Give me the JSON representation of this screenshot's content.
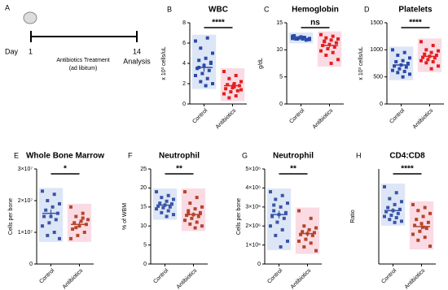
{
  "timeline": {
    "label": "A",
    "day_word": "Day",
    "start": "1",
    "treatment": "Antibiotics Treatment",
    "treatment_note": "(ad libitum)",
    "end": "14",
    "end_label": "Analysis"
  },
  "chart_data": [
    {
      "type": "dot",
      "panel": "B",
      "title": "WBC",
      "ylabel": "x 10³ cells/uL",
      "ylim": [
        0,
        8
      ],
      "yticks": [
        0,
        2,
        4,
        6,
        8
      ],
      "significance": "****",
      "series": [
        {
          "name": "Control",
          "color": "#2b4aa8",
          "shade": "#dde6f6",
          "values": [
            6.2,
            6.5,
            5.5,
            5.0,
            4.5,
            4.3,
            4.0,
            3.8,
            3.5,
            3.3,
            3.0,
            2.8,
            2.5,
            2.2,
            2.0,
            1.8,
            3.6,
            4.1
          ],
          "mean": 3.6,
          "sem": 0.4
        },
        {
          "name": "Antibiotics",
          "color": "#e02020",
          "shade": "#fadbe4",
          "values": [
            3.2,
            2.8,
            2.5,
            2.2,
            2.0,
            1.9,
            1.8,
            1.6,
            1.5,
            1.3,
            1.2,
            1.0,
            0.8,
            0.6,
            1.4,
            1.7
          ],
          "mean": 1.8,
          "sem": 0.2
        }
      ]
    },
    {
      "type": "dot",
      "panel": "C",
      "title": "Hemoglobin",
      "ylabel": "g/dL",
      "ylim": [
        0,
        15
      ],
      "yticks": [
        0,
        5,
        10,
        15
      ],
      "significance": "ns",
      "series": [
        {
          "name": "Control",
          "color": "#2b4aa8",
          "shade": "#dde6f6",
          "values": [
            12.5,
            12.3,
            12.2,
            12.1,
            12.0,
            12.0,
            11.9,
            12.4,
            12.6,
            11.8,
            12.2,
            12.1,
            12.3,
            12.0,
            11.9,
            12.2
          ],
          "mean": 12.1,
          "sem": 0.1
        },
        {
          "name": "Antibiotics",
          "color": "#e02020",
          "shade": "#fadbe4",
          "values": [
            12.8,
            12.5,
            12.2,
            12.0,
            11.8,
            11.5,
            11.3,
            11.0,
            10.8,
            10.5,
            10.2,
            9.8,
            9.5,
            9.0,
            8.2,
            7.5,
            11.6
          ],
          "mean": 10.8,
          "sem": 0.4
        }
      ]
    },
    {
      "type": "dot",
      "panel": "D",
      "title": "Platelets",
      "ylabel": "x 10³ cells/uL",
      "ylim": [
        0,
        1500
      ],
      "yticks": [
        0,
        500,
        1000,
        1500
      ],
      "significance": "****",
      "series": [
        {
          "name": "Control",
          "color": "#2b4aa8",
          "shade": "#dde6f6",
          "values": [
            1000,
            950,
            900,
            850,
            800,
            780,
            750,
            720,
            700,
            680,
            650,
            620,
            600,
            580,
            550,
            500
          ],
          "mean": 720,
          "sem": 30
        },
        {
          "name": "Antibiotics",
          "color": "#e02020",
          "shade": "#fadbe4",
          "values": [
            1150,
            1080,
            1000,
            980,
            950,
            920,
            900,
            880,
            860,
            850,
            820,
            800,
            780,
            760,
            700,
            650
          ],
          "mean": 880,
          "sem": 30
        }
      ]
    },
    {
      "type": "dot",
      "panel": "E",
      "title": "Whole Bone Marrow",
      "ylabel": "Cells per bone",
      "ylim": [
        0,
        30000000
      ],
      "yticks": [
        0,
        {
          "value": 10000000,
          "label": "1×10⁷"
        },
        {
          "value": 20000000,
          "label": "2×10⁷"
        },
        {
          "value": 30000000,
          "label": "3×10⁷"
        }
      ],
      "significance": "*",
      "series": [
        {
          "name": "Control",
          "color": "#3a55a5",
          "shade": "#dde6f6",
          "values": [
            23000000,
            22000000,
            20000000,
            19000000,
            18000000,
            17000000,
            16000000,
            15000000,
            15000000,
            14000000,
            13000000,
            12000000,
            10000000,
            9000000,
            8000000
          ],
          "mean": 16000000,
          "sem": 1200000
        },
        {
          "name": "Antibiotics",
          "color": "#b5452a",
          "shade": "#fadbe4",
          "values": [
            18000000,
            16000000,
            15000000,
            14000000,
            13500000,
            13000000,
            12500000,
            12000000,
            11000000,
            10000000,
            9000000,
            8000000,
            14500000,
            11500000
          ],
          "mean": 12500000,
          "sem": 800000
        }
      ]
    },
    {
      "type": "dot",
      "panel": "F",
      "title": "Neutrophil",
      "ylabel": "% of WBM",
      "ylim": [
        0,
        25
      ],
      "yticks": [
        0,
        5,
        10,
        15,
        20,
        25
      ],
      "significance": "**",
      "series": [
        {
          "name": "Control",
          "color": "#3a55a5",
          "shade": "#dde6f6",
          "values": [
            19,
            18,
            17.5,
            17,
            16.5,
            16,
            15.8,
            15.5,
            15.2,
            15,
            14.8,
            14.5,
            14,
            13.5,
            13,
            12.5
          ],
          "mean": 15.5,
          "sem": 0.5
        },
        {
          "name": "Antibiotics",
          "color": "#b5452a",
          "shade": "#fadbe4",
          "values": [
            19,
            17.5,
            16,
            15,
            14.5,
            14,
            13.5,
            13,
            12.8,
            12.5,
            12,
            11.5,
            11,
            10.5,
            10,
            9.5,
            13.2
          ],
          "mean": 13,
          "sem": 0.6
        }
      ]
    },
    {
      "type": "dot",
      "panel": "G",
      "title": "Neutrophil",
      "ylabel": "Cells per bone",
      "ylim": [
        0,
        5000000
      ],
      "yticks": [
        0,
        {
          "value": 1000000,
          "label": "1×10⁶"
        },
        {
          "value": 2000000,
          "label": "2×10⁶"
        },
        {
          "value": 3000000,
          "label": "3×10⁶"
        },
        {
          "value": 4000000,
          "label": "4×10⁶"
        },
        {
          "value": 5000000,
          "label": "5×10⁶"
        }
      ],
      "significance": "**",
      "series": [
        {
          "name": "Control",
          "color": "#3a55a5",
          "shade": "#dde6f6",
          "values": [
            3800000,
            3600000,
            3400000,
            3200000,
            3000000,
            2800000,
            2700000,
            2600000,
            2500000,
            2400000,
            2200000,
            2000000,
            1800000,
            1500000,
            1200000,
            900000,
            3100000
          ],
          "mean": 2600000,
          "sem": 200000
        },
        {
          "name": "Antibiotics",
          "color": "#b5452a",
          "shade": "#fadbe4",
          "values": [
            2800000,
            2400000,
            2000000,
            1900000,
            1800000,
            1700000,
            1650000,
            1600000,
            1550000,
            1500000,
            1300000,
            1200000,
            1100000,
            900000,
            700000
          ],
          "mean": 1600000,
          "sem": 150000
        }
      ]
    },
    {
      "type": "dot",
      "panel": "H",
      "title": "CD4:CD8",
      "ylabel": "Ratio",
      "ylim": [
        0,
        1.6
      ],
      "significance": "****",
      "series": [
        {
          "name": "Control",
          "color": "#3a55a5",
          "shade": "#dde6f6",
          "values": [
            1.3,
            1.2,
            1.1,
            1.05,
            1.0,
            0.95,
            0.92,
            0.9,
            0.88,
            0.85,
            0.82,
            0.8,
            0.78,
            0.75,
            0.72,
            0.7
          ],
          "mean": 0.9,
          "sem": 0.04
        },
        {
          "name": "Antibiotics",
          "color": "#b5452a",
          "shade": "#fadbe4",
          "values": [
            1.0,
            0.95,
            0.9,
            0.85,
            0.8,
            0.75,
            0.7,
            0.68,
            0.65,
            0.6,
            0.55,
            0.5,
            0.45,
            0.4,
            0.3,
            0.62
          ],
          "mean": 0.63,
          "sem": 0.05
        }
      ]
    }
  ]
}
